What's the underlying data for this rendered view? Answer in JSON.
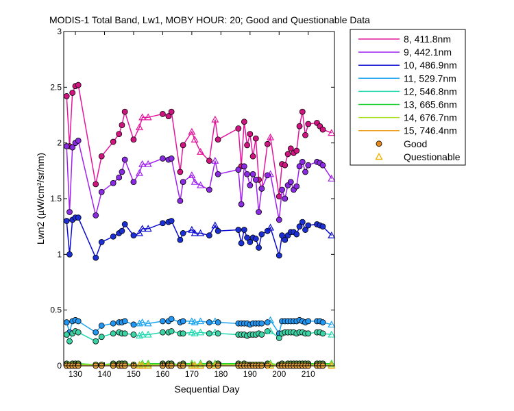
{
  "chart_data": {
    "type": "line",
    "title": "MODIS-1 Total Band, Lw1, MOBY HOUR: 20;  Good and Questionable Data",
    "xlabel": "Sequential Day",
    "ylabel": "Lwn2 (µW/cm²/sr/nm)",
    "xlim": [
      126,
      219
    ],
    "ylim": [
      0,
      3
    ],
    "xticks": [
      "130",
      "140",
      "150",
      "160",
      "170",
      "180",
      "190",
      "200",
      "210"
    ],
    "yticks": [
      "0",
      "0.5",
      "1",
      "1.5",
      "2",
      "2.5",
      "3"
    ],
    "grid": false,
    "legend_position": "right-outside",
    "legend_marker_labels": {
      "good": "Good",
      "questionable": "Questionable"
    },
    "x": [
      127,
      128,
      129,
      130,
      131,
      137,
      139,
      143,
      145,
      146,
      147,
      150,
      152,
      153,
      155,
      160,
      162,
      163,
      166,
      167,
      170,
      171,
      173,
      176,
      178,
      179,
      186,
      187,
      188,
      189,
      190,
      191,
      192,
      193,
      194,
      196,
      197,
      200,
      201,
      202,
      203,
      204,
      205,
      206,
      207,
      208,
      209,
      210,
      213,
      214,
      215,
      218
    ],
    "quality": [
      "g",
      "g",
      "g",
      "g",
      "g",
      "g",
      "g",
      "g",
      "g",
      "g",
      "g",
      "g",
      "q",
      "q",
      "q",
      "g",
      "g",
      "g",
      "g",
      "g",
      "q",
      "q",
      "q",
      "g",
      "q",
      "g",
      "g",
      "g",
      "g",
      "g",
      "g",
      "g",
      "g",
      "g",
      "g",
      "g",
      "q",
      "g",
      "g",
      "g",
      "g",
      "g",
      "g",
      "g",
      "g",
      "g",
      "g",
      "g",
      "g",
      "g",
      "g",
      "q"
    ],
    "series": [
      {
        "name": "8, 411.8nm",
        "color": "#e4159c",
        "face": "#d0147f",
        "values": [
          2.42,
          1.97,
          2.45,
          2.51,
          2.52,
          1.63,
          1.88,
          2.01,
          2.08,
          2.16,
          2.28,
          2.03,
          2.14,
          2.23,
          2.23,
          2.26,
          2.24,
          2.28,
          1.74,
          1.98,
          2.1,
          2.03,
          1.92,
          1.84,
          2.21,
          2.03,
          2.13,
          1.79,
          2.19,
          1.98,
          2.08,
          1.88,
          2.04,
          1.67,
          1.59,
          1.99,
          2.05,
          1.52,
          1.81,
          1.8,
          1.9,
          1.95,
          1.91,
          1.93,
          2.15,
          2.28,
          2.07,
          2.17,
          2.18,
          2.15,
          2.12,
          2.09
        ]
      },
      {
        "name": "9, 442.1nm",
        "color": "#a020f0",
        "face": "#8a2be2",
        "values": [
          1.97,
          1.38,
          1.96,
          2.0,
          2.02,
          1.35,
          1.56,
          1.64,
          1.69,
          1.74,
          1.85,
          1.65,
          1.73,
          1.81,
          1.81,
          1.86,
          1.85,
          1.86,
          1.48,
          1.65,
          1.71,
          1.65,
          1.62,
          1.58,
          1.84,
          1.72,
          1.76,
          1.45,
          1.79,
          1.72,
          1.62,
          1.72,
          1.67,
          1.38,
          1.59,
          1.71,
          1.72,
          1.31,
          1.58,
          1.5,
          1.62,
          1.65,
          1.58,
          1.61,
          1.79,
          1.83,
          1.74,
          1.8,
          1.83,
          1.82,
          1.8,
          1.68
        ]
      },
      {
        "name": "10, 486.9nm",
        "color": "#0a0ad0",
        "face": "#1c2fd4",
        "values": [
          1.3,
          1.0,
          1.31,
          1.33,
          1.33,
          0.97,
          1.11,
          1.16,
          1.19,
          1.21,
          1.27,
          1.17,
          1.19,
          1.23,
          1.23,
          1.28,
          1.29,
          1.3,
          1.13,
          1.19,
          1.22,
          1.19,
          1.19,
          1.17,
          1.26,
          1.21,
          1.22,
          1.1,
          1.22,
          1.15,
          1.11,
          1.15,
          1.14,
          1.06,
          1.18,
          1.21,
          1.24,
          0.99,
          1.17,
          1.13,
          1.17,
          1.2,
          1.2,
          1.18,
          1.25,
          1.29,
          1.22,
          1.26,
          1.27,
          1.26,
          1.25,
          1.17
        ]
      },
      {
        "name": "11, 529.7nm",
        "color": "#1aa3f0",
        "face": "#2196f3",
        "values": [
          0.39,
          0.3,
          0.4,
          0.41,
          0.4,
          0.3,
          0.36,
          0.38,
          0.39,
          0.39,
          0.4,
          0.37,
          0.38,
          0.39,
          0.38,
          0.4,
          0.4,
          0.42,
          0.39,
          0.4,
          0.4,
          0.39,
          0.4,
          0.39,
          0.4,
          0.39,
          0.38,
          0.38,
          0.38,
          0.38,
          0.37,
          0.38,
          0.38,
          0.38,
          0.38,
          0.39,
          0.41,
          0.29,
          0.4,
          0.4,
          0.4,
          0.4,
          0.4,
          0.4,
          0.41,
          0.4,
          0.39,
          0.4,
          0.4,
          0.4,
          0.39,
          0.37
        ]
      },
      {
        "name": "12, 546.8nm",
        "color": "#20d8b0",
        "face": "#3cd3a5",
        "values": [
          0.28,
          0.22,
          0.29,
          0.31,
          0.3,
          0.22,
          0.26,
          0.29,
          0.3,
          0.29,
          0.29,
          0.28,
          0.27,
          0.28,
          0.28,
          0.3,
          0.3,
          0.31,
          0.29,
          0.29,
          0.3,
          0.29,
          0.3,
          0.29,
          0.3,
          0.29,
          0.28,
          0.28,
          0.28,
          0.27,
          0.28,
          0.28,
          0.28,
          0.29,
          0.28,
          0.31,
          0.31,
          0.25,
          0.29,
          0.3,
          0.3,
          0.3,
          0.3,
          0.29,
          0.3,
          0.3,
          0.29,
          0.29,
          0.3,
          0.3,
          0.29,
          0.28
        ]
      },
      {
        "name": "13, 665.6nm",
        "color": "#19d02a",
        "face": "#4caf50",
        "values": [
          0.02,
          0.01,
          0.02,
          0.02,
          0.02,
          0.01,
          0.01,
          0.02,
          0.02,
          0.02,
          0.02,
          0.01,
          0.01,
          0.02,
          0.02,
          0.02,
          0.02,
          0.02,
          0.01,
          0.02,
          0.02,
          0.01,
          0.02,
          0.02,
          0.02,
          0.02,
          0.02,
          0.01,
          0.02,
          0.01,
          0.01,
          0.01,
          0.01,
          0.01,
          0.01,
          0.02,
          0.02,
          0.01,
          0.02,
          0.01,
          0.02,
          0.02,
          0.02,
          0.02,
          0.02,
          0.02,
          0.02,
          0.02,
          0.02,
          0.02,
          0.02,
          0.02
        ]
      },
      {
        "name": "14, 676.7nm",
        "color": "#a8e02a",
        "face": "#9acd32",
        "values": [
          0.01,
          0.01,
          0.01,
          0.01,
          0.01,
          0.01,
          0.01,
          0.01,
          0.01,
          0.01,
          0.01,
          0.01,
          0.01,
          0.01,
          0.01,
          0.01,
          0.01,
          0.01,
          0.01,
          0.01,
          0.01,
          0.01,
          0.01,
          0.01,
          0.01,
          0.01,
          0.01,
          0.01,
          0.01,
          0.01,
          0.01,
          0.01,
          0.01,
          0.01,
          0.01,
          0.01,
          0.01,
          0.01,
          0.01,
          0.01,
          0.01,
          0.01,
          0.01,
          0.01,
          0.01,
          0.01,
          0.01,
          0.01,
          0.01,
          0.01,
          0.01,
          0.01
        ]
      },
      {
        "name": "15, 746.4nm",
        "color": "#f0a020",
        "face": "#e8a33c",
        "values": [
          0.0,
          0.0,
          0.0,
          0.0,
          0.0,
          0.0,
          0.0,
          0.0,
          0.0,
          0.0,
          0.0,
          0.0,
          0.0,
          0.0,
          0.0,
          0.0,
          0.0,
          0.0,
          0.0,
          0.0,
          0.0,
          0.0,
          0.0,
          0.0,
          0.0,
          0.0,
          0.0,
          0.0,
          0.0,
          0.0,
          0.0,
          0.0,
          0.0,
          0.0,
          0.0,
          0.0,
          0.0,
          0.0,
          0.0,
          0.0,
          0.0,
          0.0,
          0.0,
          0.0,
          0.0,
          0.0,
          0.0,
          0.0,
          0.0,
          0.0,
          0.0,
          0.0
        ]
      }
    ],
    "marker_colors": {
      "good_legend": "#e88a1a",
      "questionable_legend": "#f0b400"
    }
  }
}
